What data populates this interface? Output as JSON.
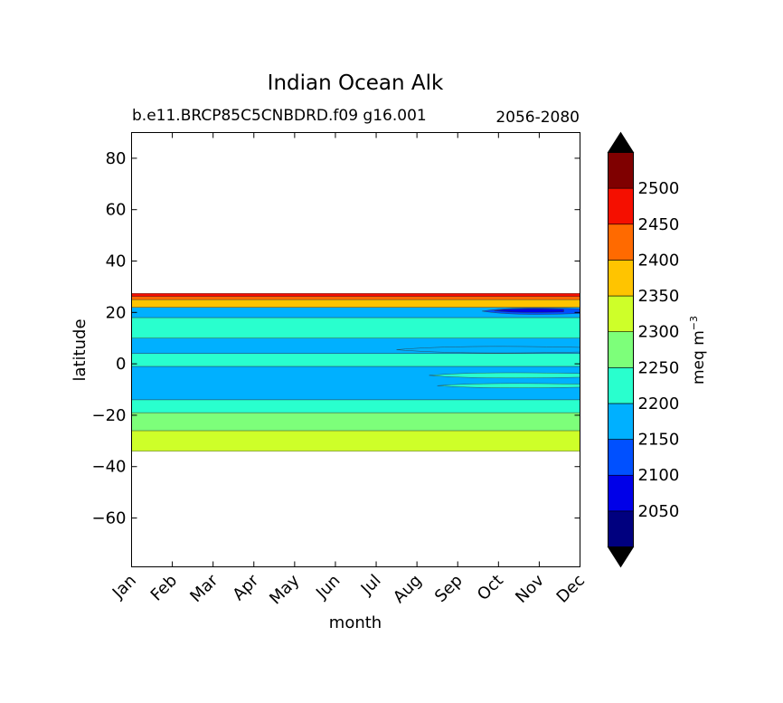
{
  "chart_data": {
    "type": "heatmap",
    "title": "Indian Ocean Alk",
    "subtitle_left": "b.e11.BRCP85C5CNBDRD.f09 g16.001",
    "subtitle_right": "2056-2080",
    "xlabel": "month",
    "ylabel": "latitude",
    "x_ticks": [
      "Jan",
      "Feb",
      "Mar",
      "Apr",
      "May",
      "Jun",
      "Jul",
      "Aug",
      "Sep",
      "Oct",
      "Nov",
      "Dec"
    ],
    "y_ticks": [
      80,
      60,
      40,
      20,
      0,
      -20,
      -40,
      -60
    ],
    "ylim": [
      -79,
      90
    ],
    "grid": false,
    "colorbar": {
      "label": "meq m",
      "label_exp": "−3",
      "tick_labels": [
        2050,
        2100,
        2150,
        2200,
        2250,
        2300,
        2350,
        2400,
        2450,
        2500
      ],
      "levels": [
        2000,
        2050,
        2100,
        2150,
        2200,
        2250,
        2300,
        2350,
        2400,
        2450,
        2500,
        2550
      ],
      "colors": [
        "#00007f",
        "#0000e8",
        "#0050ff",
        "#00b0ff",
        "#29ffce",
        "#7dff7a",
        "#ceff29",
        "#ffc400",
        "#ff6a00",
        "#f50f00",
        "#7f0000"
      ],
      "extend": "both",
      "under_color": "#000000",
      "over_color": "#000000"
    },
    "bands": [
      {
        "lat_from": -34,
        "lat_to": -26,
        "value": 2325
      },
      {
        "lat_from": -26,
        "lat_to": -19,
        "value": 2275
      },
      {
        "lat_from": -19,
        "lat_to": -14,
        "value": 2225
      },
      {
        "lat_from": -14,
        "lat_to": -1,
        "value": 2175
      },
      {
        "lat_from": -1,
        "lat_to": 4,
        "value": 2225
      },
      {
        "lat_from": 4,
        "lat_to": 10,
        "value": 2175
      },
      {
        "lat_from": 10,
        "lat_to": 18,
        "value": 2225
      },
      {
        "lat_from": 18,
        "lat_to": 22,
        "value": 2175
      },
      {
        "lat_from": 22,
        "lat_to": 25,
        "value": 2375
      },
      {
        "lat_from": 25,
        "lat_to": 26.2,
        "value": 2425
      },
      {
        "lat_from": 26.2,
        "lat_to": 27.4,
        "value": 2475
      }
    ],
    "features": [
      {
        "month_from": 8.6,
        "month_to": 11.0,
        "lat_center": 20.5,
        "half_height": 1.5,
        "value": 2125
      },
      {
        "month_from": 8.9,
        "month_to": 10.6,
        "lat_center": 20.7,
        "half_height": 0.8,
        "value": 2075
      },
      {
        "month_from": 7.3,
        "month_to": 11.0,
        "lat_center": -4.5,
        "half_height": 1.2,
        "value": 2225
      },
      {
        "month_from": 7.5,
        "month_to": 11.0,
        "lat_center": -8.5,
        "half_height": 1.0,
        "value": 2225
      },
      {
        "month_from": 6.5,
        "month_to": 11.0,
        "lat_center": 5.5,
        "half_height": 1.5,
        "value": 2175
      }
    ]
  }
}
